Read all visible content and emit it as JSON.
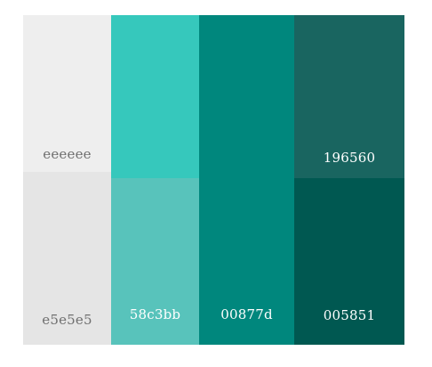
{
  "swatches": [
    {
      "hex_label": "eeeeee",
      "color": "#eeeeee"
    },
    {
      "hex_label": "e5e5e5",
      "color": "#e5e5e5"
    },
    {
      "hex_label": "",
      "color": "#36c8bc"
    },
    {
      "hex_label": "58c3bb",
      "color": "#58c3bb"
    },
    {
      "hex_label": "00877d",
      "color": "#00877d"
    },
    {
      "hex_label": "196560",
      "color": "#196560"
    },
    {
      "hex_label": "005851",
      "color": "#005851"
    }
  ]
}
